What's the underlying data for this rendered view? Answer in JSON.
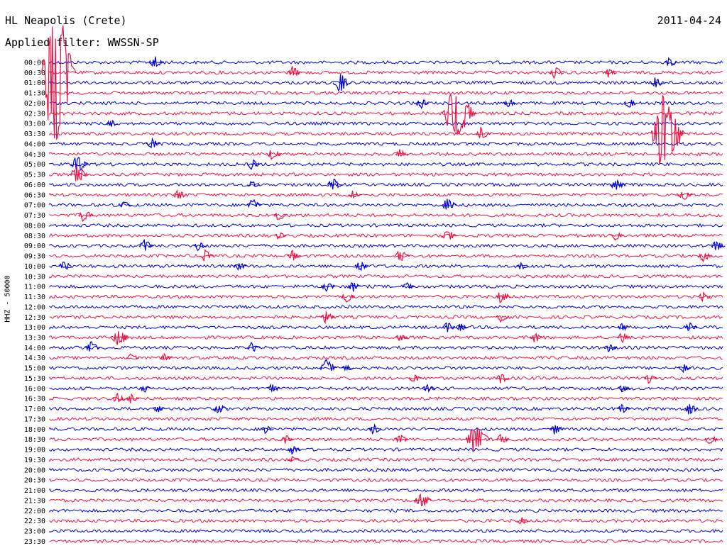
{
  "header": {
    "station": "HL Neapolis (Crete)",
    "filter": "Applied filter: WWSSN-SP",
    "date": "2011-04-24"
  },
  "chart_data": {
    "type": "helicorder",
    "ylabel": "HHZ - 50000",
    "colors": [
      "#0000dd",
      "#ee1144"
    ],
    "rows": [
      "00:00",
      "00:30",
      "01:00",
      "01:30",
      "02:00",
      "02:30",
      "03:00",
      "03:30",
      "04:00",
      "04:30",
      "05:00",
      "05:30",
      "06:00",
      "06:30",
      "07:00",
      "07:30",
      "08:00",
      "08:30",
      "09:00",
      "09:30",
      "10:00",
      "10:30",
      "11:00",
      "11:30",
      "12:00",
      "12:30",
      "13:00",
      "13:30",
      "14:00",
      "14:30",
      "15:00",
      "15:30",
      "16:00",
      "16:30",
      "17:00",
      "17:30",
      "18:00",
      "18:30",
      "19:00",
      "19:30",
      "20:00",
      "20:30",
      "21:00",
      "21:30",
      "22:00",
      "22:30",
      "23:00",
      "23:30"
    ],
    "events": [
      {
        "row": 0,
        "x": 0.155,
        "amp": 10
      },
      {
        "row": 0,
        "x": 0.92,
        "amp": 8
      },
      {
        "row": 1,
        "x": 0.005,
        "amp": 120
      },
      {
        "row": 1,
        "x": 0.36,
        "amp": 10
      },
      {
        "row": 1,
        "x": 0.75,
        "amp": 9
      },
      {
        "row": 1,
        "x": 0.83,
        "amp": 7
      },
      {
        "row": 2,
        "x": 0.43,
        "amp": 15
      },
      {
        "row": 2,
        "x": 0.9,
        "amp": 9
      },
      {
        "row": 4,
        "x": 0.55,
        "amp": 9
      },
      {
        "row": 4,
        "x": 0.68,
        "amp": 8
      },
      {
        "row": 4,
        "x": 0.86,
        "amp": 8
      },
      {
        "row": 5,
        "x": 0.6,
        "amp": 40
      },
      {
        "row": 6,
        "x": 0.09,
        "amp": 6
      },
      {
        "row": 7,
        "x": 0.64,
        "amp": 10
      },
      {
        "row": 7,
        "x": 0.91,
        "amp": 60
      },
      {
        "row": 8,
        "x": 0.15,
        "amp": 9
      },
      {
        "row": 9,
        "x": 0.33,
        "amp": 9
      },
      {
        "row": 9,
        "x": 0.52,
        "amp": 7
      },
      {
        "row": 10,
        "x": 0.04,
        "amp": 14
      },
      {
        "row": 10,
        "x": 0.3,
        "amp": 8
      },
      {
        "row": 11,
        "x": 0.04,
        "amp": 16
      },
      {
        "row": 12,
        "x": 0.3,
        "amp": 6
      },
      {
        "row": 12,
        "x": 0.42,
        "amp": 10
      },
      {
        "row": 12,
        "x": 0.84,
        "amp": 10
      },
      {
        "row": 13,
        "x": 0.19,
        "amp": 9
      },
      {
        "row": 13,
        "x": 0.45,
        "amp": 7
      },
      {
        "row": 13,
        "x": 0.94,
        "amp": 10
      },
      {
        "row": 14,
        "x": 0.11,
        "amp": 7
      },
      {
        "row": 14,
        "x": 0.3,
        "amp": 10
      },
      {
        "row": 14,
        "x": 0.59,
        "amp": 10
      },
      {
        "row": 15,
        "x": 0.05,
        "amp": 10
      },
      {
        "row": 15,
        "x": 0.34,
        "amp": 8
      },
      {
        "row": 17,
        "x": 0.34,
        "amp": 6
      },
      {
        "row": 17,
        "x": 0.59,
        "amp": 10
      },
      {
        "row": 17,
        "x": 0.84,
        "amp": 7
      },
      {
        "row": 18,
        "x": 0.14,
        "amp": 10
      },
      {
        "row": 18,
        "x": 0.22,
        "amp": 7
      },
      {
        "row": 18,
        "x": 0.99,
        "amp": 9
      },
      {
        "row": 19,
        "x": 0.23,
        "amp": 9
      },
      {
        "row": 19,
        "x": 0.36,
        "amp": 9
      },
      {
        "row": 19,
        "x": 0.52,
        "amp": 10
      },
      {
        "row": 19,
        "x": 0.97,
        "amp": 9
      },
      {
        "row": 20,
        "x": 0.02,
        "amp": 8
      },
      {
        "row": 20,
        "x": 0.28,
        "amp": 7
      },
      {
        "row": 20,
        "x": 0.46,
        "amp": 8
      },
      {
        "row": 20,
        "x": 0.7,
        "amp": 6
      },
      {
        "row": 22,
        "x": 0.41,
        "amp": 9
      },
      {
        "row": 22,
        "x": 0.45,
        "amp": 8
      },
      {
        "row": 22,
        "x": 0.53,
        "amp": 7
      },
      {
        "row": 23,
        "x": 0.44,
        "amp": 9
      },
      {
        "row": 23,
        "x": 0.67,
        "amp": 10
      },
      {
        "row": 23,
        "x": 0.97,
        "amp": 7
      },
      {
        "row": 25,
        "x": 0.41,
        "amp": 9
      },
      {
        "row": 25,
        "x": 0.67,
        "amp": 7
      },
      {
        "row": 26,
        "x": 0.59,
        "amp": 8
      },
      {
        "row": 26,
        "x": 0.61,
        "amp": 6
      },
      {
        "row": 26,
        "x": 0.85,
        "amp": 6
      },
      {
        "row": 26,
        "x": 0.95,
        "amp": 7
      },
      {
        "row": 27,
        "x": 0.1,
        "amp": 15
      },
      {
        "row": 27,
        "x": 0.52,
        "amp": 7
      },
      {
        "row": 27,
        "x": 0.72,
        "amp": 8
      },
      {
        "row": 27,
        "x": 0.85,
        "amp": 8
      },
      {
        "row": 28,
        "x": 0.06,
        "amp": 10
      },
      {
        "row": 28,
        "x": 0.3,
        "amp": 8
      },
      {
        "row": 28,
        "x": 0.83,
        "amp": 7
      },
      {
        "row": 29,
        "x": 0.12,
        "amp": 7
      },
      {
        "row": 29,
        "x": 0.17,
        "amp": 6
      },
      {
        "row": 30,
        "x": 0.41,
        "amp": 14
      },
      {
        "row": 30,
        "x": 0.44,
        "amp": 6
      },
      {
        "row": 30,
        "x": 0.94,
        "amp": 7
      },
      {
        "row": 31,
        "x": 0.54,
        "amp": 7
      },
      {
        "row": 31,
        "x": 0.67,
        "amp": 8
      },
      {
        "row": 31,
        "x": 0.89,
        "amp": 8
      },
      {
        "row": 32,
        "x": 0.14,
        "amp": 6
      },
      {
        "row": 32,
        "x": 0.33,
        "amp": 7
      },
      {
        "row": 32,
        "x": 0.56,
        "amp": 7
      },
      {
        "row": 32,
        "x": 0.85,
        "amp": 7
      },
      {
        "row": 33,
        "x": 0.1,
        "amp": 9
      },
      {
        "row": 33,
        "x": 0.12,
        "amp": 7
      },
      {
        "row": 34,
        "x": 0.16,
        "amp": 6
      },
      {
        "row": 34,
        "x": 0.25,
        "amp": 10
      },
      {
        "row": 34,
        "x": 0.85,
        "amp": 8
      },
      {
        "row": 34,
        "x": 0.95,
        "amp": 9
      },
      {
        "row": 36,
        "x": 0.32,
        "amp": 7
      },
      {
        "row": 36,
        "x": 0.48,
        "amp": 8
      },
      {
        "row": 36,
        "x": 0.75,
        "amp": 8
      },
      {
        "row": 37,
        "x": 0.35,
        "amp": 7
      },
      {
        "row": 37,
        "x": 0.52,
        "amp": 8
      },
      {
        "row": 37,
        "x": 0.63,
        "amp": 25
      },
      {
        "row": 37,
        "x": 0.67,
        "amp": 8
      },
      {
        "row": 37,
        "x": 0.98,
        "amp": 8
      },
      {
        "row": 38,
        "x": 0.36,
        "amp": 7
      },
      {
        "row": 39,
        "x": 0.36,
        "amp": 6
      },
      {
        "row": 43,
        "x": 0.55,
        "amp": 14
      },
      {
        "row": 45,
        "x": 0.7,
        "amp": 6
      }
    ]
  }
}
